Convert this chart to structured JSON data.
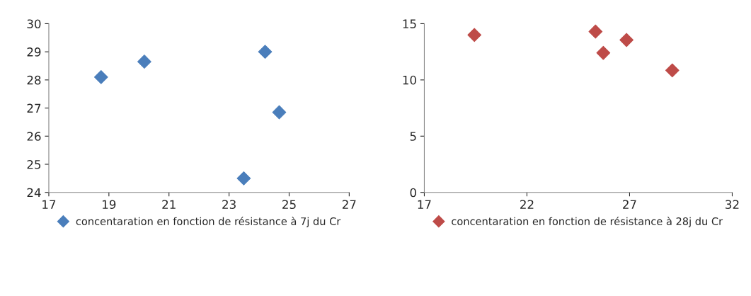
{
  "chart_data": [
    {
      "type": "scatter",
      "x": [
        18.74,
        20.18,
        24.2,
        24.67,
        23.49
      ],
      "series": [
        {
          "name": "concentaration en fonction de résistance à 7j du Cr",
          "color": "#4a7ebb",
          "values": [
            28.1,
            28.65,
            29.0,
            26.85,
            24.5
          ]
        }
      ],
      "xlim": [
        17,
        27
      ],
      "xticks": [
        17,
        19,
        21,
        23,
        25,
        27
      ],
      "ylim": [
        24,
        30
      ],
      "yticks": [
        24,
        25,
        26,
        27,
        28,
        29,
        30
      ],
      "marker": "diamond",
      "legend": "bottom",
      "grid": false
    },
    {
      "type": "scatter",
      "x": [
        19.44,
        25.34,
        25.72,
        26.85,
        29.08
      ],
      "series": [
        {
          "name": "concentaration en fonction de résistance à 28j du Cr",
          "color": "#be4b48",
          "values": [
            14.0,
            14.3,
            12.4,
            13.55,
            10.85
          ]
        }
      ],
      "xlim": [
        17,
        32
      ],
      "xticks": [
        17,
        22,
        27,
        32
      ],
      "ylim": [
        0,
        15
      ],
      "yticks": [
        0,
        5,
        10,
        15
      ],
      "marker": "diamond",
      "legend": "bottom",
      "grid": false
    }
  ]
}
